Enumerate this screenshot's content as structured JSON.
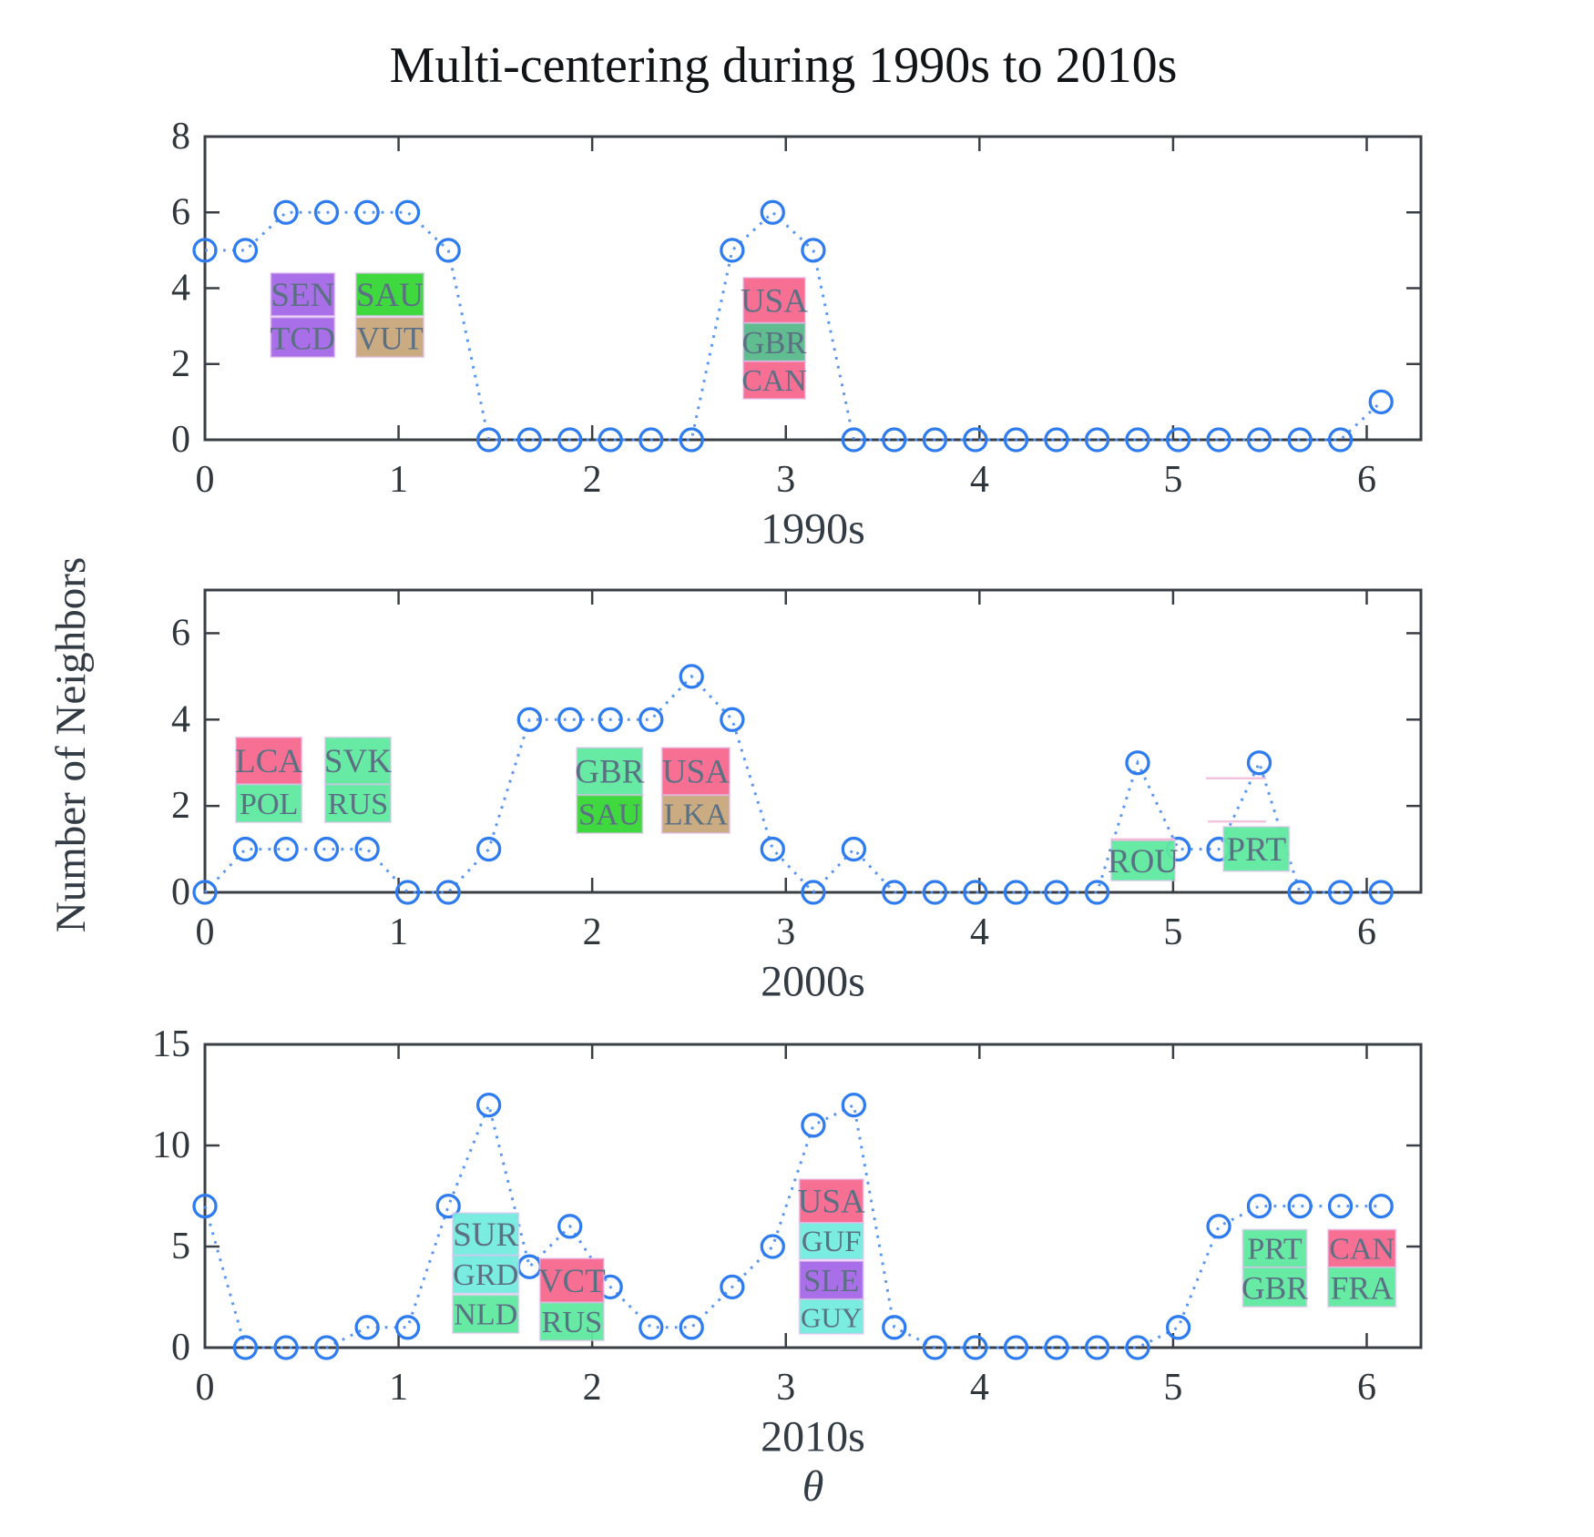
{
  "figure": {
    "title": "Multi-centering during 1990s to 2010s",
    "ylabel": "Number of Neighbors",
    "xlabel_global": "θ"
  },
  "palette": {
    "marker_blue": "#2e7cf0",
    "line_blue": "#4b8df2",
    "axis": "#3a3f45",
    "tick_text": "#2f363c",
    "decade_text": "#333c44",
    "box_text": "#5c7084",
    "box_edge": "rgba(225,190,240,0.6)",
    "artifact_pink": "#f2b9d9",
    "pink": "#f7698f",
    "spring": "#5fe9a0",
    "green": "#35d835",
    "purple": "#a568e8",
    "tan": "#c8a77c",
    "sea": "#57ba8b",
    "cyan": "#74ebdf"
  },
  "x_common": [
    0,
    0.209,
    0.419,
    0.628,
    0.838,
    1.047,
    1.257,
    1.466,
    1.676,
    1.885,
    2.094,
    2.304,
    2.513,
    2.723,
    2.932,
    3.142,
    3.351,
    3.56,
    3.77,
    3.979,
    4.189,
    4.398,
    4.608,
    4.817,
    5.027,
    5.236,
    5.445,
    5.655,
    5.864,
    6.074
  ],
  "chart_data": [
    {
      "type": "line",
      "xlabel": "1990s",
      "xlim": [
        0,
        6.28
      ],
      "ylim": [
        0,
        8
      ],
      "xticks": [
        0,
        1,
        2,
        3,
        4,
        5,
        6
      ],
      "yticks": [
        0,
        2,
        4,
        6,
        8
      ],
      "grid": false,
      "y": [
        5,
        5,
        6,
        6,
        6,
        6,
        5,
        0,
        0,
        0,
        0,
        0,
        0,
        5,
        6,
        5,
        0,
        0,
        0,
        0,
        0,
        0,
        0,
        0,
        0,
        0,
        0,
        0,
        0,
        1
      ],
      "country_labels": [
        {
          "code": "SEN",
          "color": "purple",
          "x": [
            0.34,
            0.67
          ],
          "y": [
            3.27,
            4.4
          ]
        },
        {
          "code": "TCD",
          "color": "purple",
          "x": [
            0.34,
            0.67
          ],
          "y": [
            2.18,
            3.23
          ]
        },
        {
          "code": "SAU",
          "color": "green",
          "x": [
            0.78,
            1.13
          ],
          "y": [
            3.27,
            4.4
          ]
        },
        {
          "code": "VUT",
          "color": "tan",
          "x": [
            0.78,
            1.13
          ],
          "y": [
            2.18,
            3.23
          ]
        },
        {
          "code": "USA",
          "color": "pink",
          "x": [
            2.78,
            3.1
          ],
          "y": [
            3.08,
            4.28
          ]
        },
        {
          "code": "GBR",
          "color": "sea",
          "x": [
            2.78,
            3.1
          ],
          "y": [
            2.07,
            3.08
          ]
        },
        {
          "code": "CAN",
          "color": "pink",
          "x": [
            2.78,
            3.1
          ],
          "y": [
            1.08,
            2.07
          ]
        }
      ],
      "artifact_lines": []
    },
    {
      "type": "line",
      "xlabel": "2000s",
      "xlim": [
        0,
        6.28
      ],
      "ylim": [
        0,
        7
      ],
      "xticks": [
        0,
        1,
        2,
        3,
        4,
        5,
        6
      ],
      "yticks": [
        0,
        2,
        4,
        6
      ],
      "grid": false,
      "y": [
        0,
        1,
        1,
        1,
        1,
        0,
        0,
        1,
        4,
        4,
        4,
        4,
        5,
        4,
        1,
        0,
        1,
        0,
        0,
        0,
        0,
        0,
        0,
        3,
        1,
        1,
        3,
        0,
        0,
        0
      ],
      "country_labels": [
        {
          "code": "LCA",
          "color": "pink",
          "x": [
            0.16,
            0.5
          ],
          "y": [
            2.5,
            3.59
          ]
        },
        {
          "code": "POL",
          "color": "spring",
          "x": [
            0.16,
            0.5
          ],
          "y": [
            1.62,
            2.5
          ]
        },
        {
          "code": "SVK",
          "color": "spring",
          "x": [
            0.62,
            0.96
          ],
          "y": [
            2.5,
            3.59
          ]
        },
        {
          "code": "RUS",
          "color": "spring",
          "x": [
            0.62,
            0.96
          ],
          "y": [
            1.62,
            2.5
          ]
        },
        {
          "code": "GBR",
          "color": "spring",
          "x": [
            1.92,
            2.26
          ],
          "y": [
            2.25,
            3.35
          ]
        },
        {
          "code": "SAU",
          "color": "green",
          "x": [
            1.92,
            2.26
          ],
          "y": [
            1.37,
            2.25
          ]
        },
        {
          "code": "USA",
          "color": "pink",
          "x": [
            2.36,
            2.71
          ],
          "y": [
            2.25,
            3.35
          ]
        },
        {
          "code": "LKA",
          "color": "tan",
          "x": [
            2.36,
            2.71
          ],
          "y": [
            1.37,
            2.25
          ]
        },
        {
          "code": "ROU",
          "color": "spring",
          "x": [
            4.68,
            5.01
          ],
          "y": [
            0.27,
            1.22
          ],
          "pink_top": true
        },
        {
          "code": "PRT",
          "color": "spring",
          "x": [
            5.26,
            5.6
          ],
          "y": [
            0.49,
            1.52
          ]
        }
      ],
      "artifact_lines": [
        {
          "x": [
            5.17,
            5.48
          ],
          "y": 2.64
        },
        {
          "x": [
            5.18,
            5.48
          ],
          "y": 1.64
        }
      ]
    },
    {
      "type": "line",
      "xlabel": "2010s",
      "xlim": [
        0,
        6.28
      ],
      "ylim": [
        0,
        15
      ],
      "xticks": [
        0,
        1,
        2,
        3,
        4,
        5,
        6
      ],
      "yticks": [
        0,
        5,
        10,
        15
      ],
      "grid": false,
      "y": [
        7,
        0,
        0,
        0,
        1,
        1,
        7,
        12,
        4,
        6,
        3,
        1,
        1,
        3,
        5,
        11,
        12,
        1,
        0,
        0,
        0,
        0,
        0,
        0,
        1,
        6,
        7,
        7,
        7,
        7
      ],
      "country_labels": [
        {
          "code": "SUR",
          "color": "cyan",
          "x": [
            1.28,
            1.62
          ],
          "y": [
            4.56,
            6.66
          ]
        },
        {
          "code": "GRD",
          "color": "cyan",
          "x": [
            1.28,
            1.62
          ],
          "y": [
            2.68,
            4.56
          ]
        },
        {
          "code": "NLD",
          "color": "spring",
          "x": [
            1.28,
            1.62
          ],
          "y": [
            0.72,
            2.6
          ]
        },
        {
          "code": "VCT",
          "color": "pink",
          "x": [
            1.73,
            2.06
          ],
          "y": [
            2.23,
            4.41
          ]
        },
        {
          "code": "RUS",
          "color": "spring",
          "x": [
            1.73,
            2.06
          ],
          "y": [
            0.35,
            2.23
          ]
        },
        {
          "code": "USA",
          "color": "pink",
          "x": [
            3.07,
            3.4
          ],
          "y": [
            6.17,
            8.33
          ]
        },
        {
          "code": "GUF",
          "color": "cyan",
          "x": [
            3.07,
            3.4
          ],
          "y": [
            4.37,
            6.17
          ]
        },
        {
          "code": "SLE",
          "color": "purple",
          "x": [
            3.07,
            3.4
          ],
          "y": [
            2.39,
            4.28
          ]
        },
        {
          "code": "GUY",
          "color": "cyan",
          "x": [
            3.07,
            3.4
          ],
          "y": [
            0.68,
            2.39
          ]
        },
        {
          "code": "PRT",
          "color": "spring",
          "x": [
            5.36,
            5.69
          ],
          "y": [
            3.97,
            5.84
          ]
        },
        {
          "code": "GBR",
          "color": "spring",
          "x": [
            5.36,
            5.69
          ],
          "y": [
            2.02,
            3.97
          ]
        },
        {
          "code": "CAN",
          "color": "pink",
          "x": [
            5.8,
            6.15
          ],
          "y": [
            3.97,
            5.84
          ]
        },
        {
          "code": "FRA",
          "color": "spring",
          "x": [
            5.8,
            6.15
          ],
          "y": [
            2.02,
            3.97
          ]
        }
      ],
      "artifact_lines": []
    }
  ]
}
